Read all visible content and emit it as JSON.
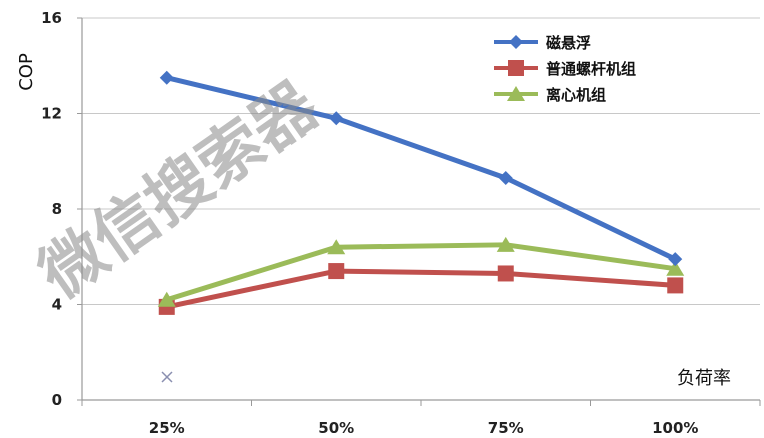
{
  "chart_data": {
    "type": "line",
    "categories": [
      "25%",
      "50%",
      "75%",
      "100%"
    ],
    "series": [
      {
        "name": "磁悬浮",
        "values": [
          13.5,
          11.8,
          9.3,
          5.9
        ],
        "color": "#4472C4",
        "marker": "diamond"
      },
      {
        "name": "普通螺杆机组",
        "values": [
          3.9,
          5.4,
          5.3,
          4.8
        ],
        "color": "#C0504D",
        "marker": "square"
      },
      {
        "name": "离心机组",
        "values": [
          4.2,
          6.4,
          6.5,
          5.5
        ],
        "color": "#9BBB59",
        "marker": "triangle"
      }
    ],
    "ylabel": "COP",
    "xlabel": "负荷率",
    "ylim": [
      0,
      16
    ],
    "yticks": [
      0,
      4,
      8,
      12,
      16
    ],
    "grid": true,
    "legend_position": "top-right"
  },
  "watermark": "微信搜索器"
}
